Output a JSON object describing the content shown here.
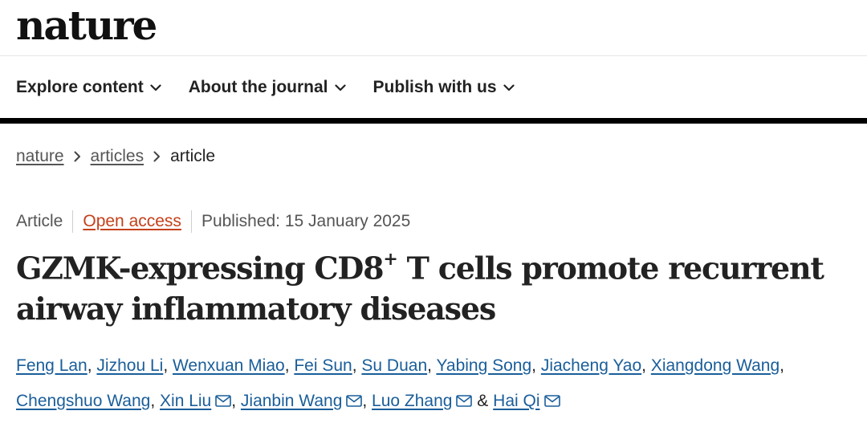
{
  "header": {
    "logo_text": "nature"
  },
  "nav": {
    "items": [
      {
        "label": "Explore content"
      },
      {
        "label": "About the journal"
      },
      {
        "label": "Publish with us"
      }
    ]
  },
  "breadcrumb": {
    "items": [
      "nature",
      "articles",
      "article"
    ]
  },
  "article": {
    "type": "Article",
    "access": "Open access",
    "published": "Published: 15 January 2025",
    "title_part1": "GZMK-expressing CD8",
    "title_sup": "+",
    "title_part2": " T cells promote recurrent airway inflammatory diseases"
  },
  "authors": {
    "list": [
      "Feng Lan",
      "Jizhou Li",
      "Wenxuan Miao",
      "Fei Sun",
      "Su Duan",
      "Yabing Song",
      "Jiacheng Yao",
      "Xiangdong Wang",
      "Chengshuo Wang",
      "Xin Liu",
      "Jianbin Wang",
      "Luo Zhang",
      "Hai Qi"
    ],
    "separator": ", ",
    "conjunction": " & "
  },
  "colors": {
    "accent_open_access": "#c4401a",
    "author_link": "#1a5e9a",
    "rule": "#000000"
  },
  "icons": {
    "nav_chevron": "chevron-down-icon",
    "breadcrumb_separator": "chevron-right-icon",
    "corresponding_author": "mail-icon"
  }
}
